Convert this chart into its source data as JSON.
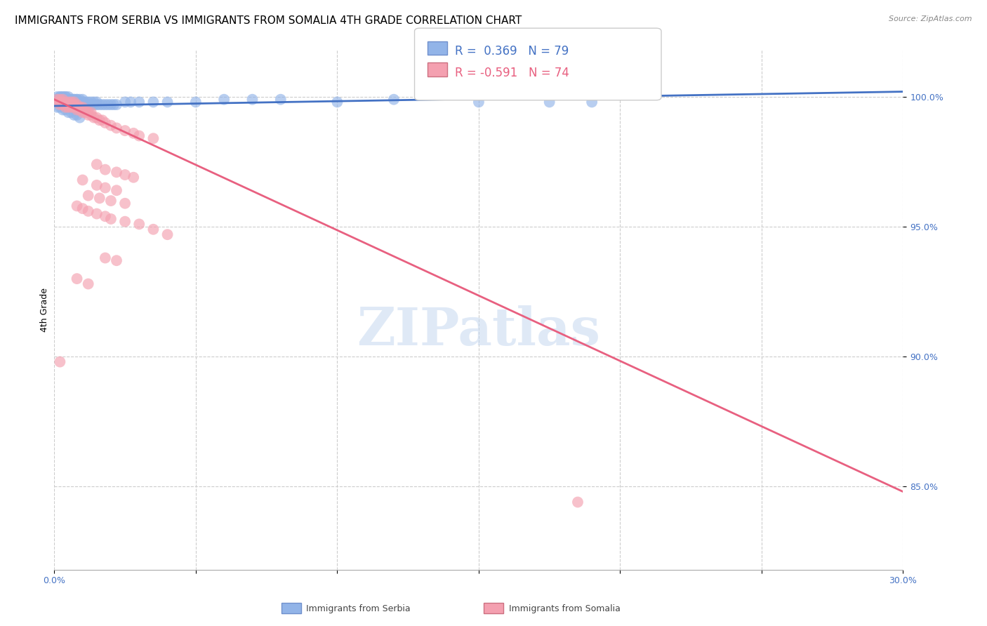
{
  "title": "IMMIGRANTS FROM SERBIA VS IMMIGRANTS FROM SOMALIA 4TH GRADE CORRELATION CHART",
  "source": "Source: ZipAtlas.com",
  "ylabel": "4th Grade",
  "x_min": 0.0,
  "x_max": 0.3,
  "y_min": 0.818,
  "y_max": 1.018,
  "serbia_color": "#92b4e8",
  "somalia_color": "#f4a0b0",
  "serbia_line_color": "#4472c4",
  "somalia_line_color": "#e86080",
  "watermark": "ZIPatlas",
  "title_fontsize": 11,
  "tick_fontsize": 9,
  "serbia_R": 0.369,
  "somalia_R": -0.591,
  "serbia_N": 79,
  "somalia_N": 74,
  "serbia_points_x": [
    0.001,
    0.001,
    0.002,
    0.002,
    0.002,
    0.002,
    0.003,
    0.003,
    0.003,
    0.003,
    0.003,
    0.004,
    0.004,
    0.004,
    0.004,
    0.005,
    0.005,
    0.005,
    0.005,
    0.005,
    0.006,
    0.006,
    0.006,
    0.006,
    0.007,
    0.007,
    0.007,
    0.007,
    0.008,
    0.008,
    0.008,
    0.008,
    0.009,
    0.009,
    0.009,
    0.01,
    0.01,
    0.01,
    0.01,
    0.011,
    0.011,
    0.012,
    0.012,
    0.013,
    0.013,
    0.014,
    0.014,
    0.015,
    0.015,
    0.016,
    0.017,
    0.018,
    0.019,
    0.02,
    0.021,
    0.022,
    0.025,
    0.027,
    0.03,
    0.035,
    0.04,
    0.05,
    0.06,
    0.07,
    0.08,
    0.1,
    0.12,
    0.15,
    0.175,
    0.19,
    0.001,
    0.002,
    0.003,
    0.004,
    0.005,
    0.006,
    0.007,
    0.008,
    0.009
  ],
  "serbia_points_y": [
    0.999,
    1.0,
    0.998,
    0.999,
    1.0,
    1.0,
    0.997,
    0.998,
    0.999,
    1.0,
    1.0,
    0.998,
    0.999,
    1.0,
    1.0,
    0.997,
    0.998,
    0.999,
    0.999,
    1.0,
    0.997,
    0.998,
    0.999,
    0.999,
    0.997,
    0.998,
    0.999,
    0.999,
    0.997,
    0.998,
    0.999,
    0.999,
    0.997,
    0.998,
    0.999,
    0.997,
    0.998,
    0.998,
    0.999,
    0.997,
    0.998,
    0.997,
    0.998,
    0.997,
    0.998,
    0.997,
    0.998,
    0.997,
    0.998,
    0.997,
    0.997,
    0.997,
    0.997,
    0.997,
    0.997,
    0.997,
    0.998,
    0.998,
    0.998,
    0.998,
    0.998,
    0.998,
    0.999,
    0.999,
    0.999,
    0.998,
    0.999,
    0.998,
    0.998,
    0.998,
    0.996,
    0.996,
    0.995,
    0.995,
    0.994,
    0.994,
    0.993,
    0.993,
    0.992
  ],
  "somalia_points_x": [
    0.001,
    0.001,
    0.002,
    0.002,
    0.002,
    0.003,
    0.003,
    0.003,
    0.004,
    0.004,
    0.004,
    0.005,
    0.005,
    0.005,
    0.006,
    0.006,
    0.006,
    0.007,
    0.007,
    0.007,
    0.008,
    0.008,
    0.008,
    0.009,
    0.009,
    0.01,
    0.01,
    0.01,
    0.011,
    0.011,
    0.012,
    0.012,
    0.013,
    0.013,
    0.014,
    0.015,
    0.016,
    0.017,
    0.018,
    0.02,
    0.022,
    0.025,
    0.028,
    0.03,
    0.035,
    0.015,
    0.018,
    0.022,
    0.025,
    0.028,
    0.01,
    0.015,
    0.018,
    0.022,
    0.012,
    0.016,
    0.02,
    0.025,
    0.008,
    0.01,
    0.012,
    0.015,
    0.018,
    0.02,
    0.025,
    0.03,
    0.035,
    0.04,
    0.018,
    0.022,
    0.008,
    0.012,
    0.185,
    0.002
  ],
  "somalia_points_y": [
    0.998,
    0.999,
    0.998,
    0.997,
    0.999,
    0.997,
    0.998,
    0.999,
    0.997,
    0.998,
    0.996,
    0.997,
    0.998,
    0.996,
    0.996,
    0.997,
    0.998,
    0.996,
    0.997,
    0.998,
    0.996,
    0.997,
    0.995,
    0.995,
    0.996,
    0.994,
    0.995,
    0.996,
    0.994,
    0.995,
    0.993,
    0.994,
    0.993,
    0.994,
    0.992,
    0.992,
    0.991,
    0.991,
    0.99,
    0.989,
    0.988,
    0.987,
    0.986,
    0.985,
    0.984,
    0.974,
    0.972,
    0.971,
    0.97,
    0.969,
    0.968,
    0.966,
    0.965,
    0.964,
    0.962,
    0.961,
    0.96,
    0.959,
    0.958,
    0.957,
    0.956,
    0.955,
    0.954,
    0.953,
    0.952,
    0.951,
    0.949,
    0.947,
    0.938,
    0.937,
    0.93,
    0.928,
    0.844,
    0.898
  ],
  "serbia_line_x": [
    0.0,
    0.3
  ],
  "serbia_line_y": [
    0.9965,
    1.002
  ],
  "somalia_line_x": [
    0.0,
    0.3
  ],
  "somalia_line_y": [
    0.999,
    0.848
  ]
}
